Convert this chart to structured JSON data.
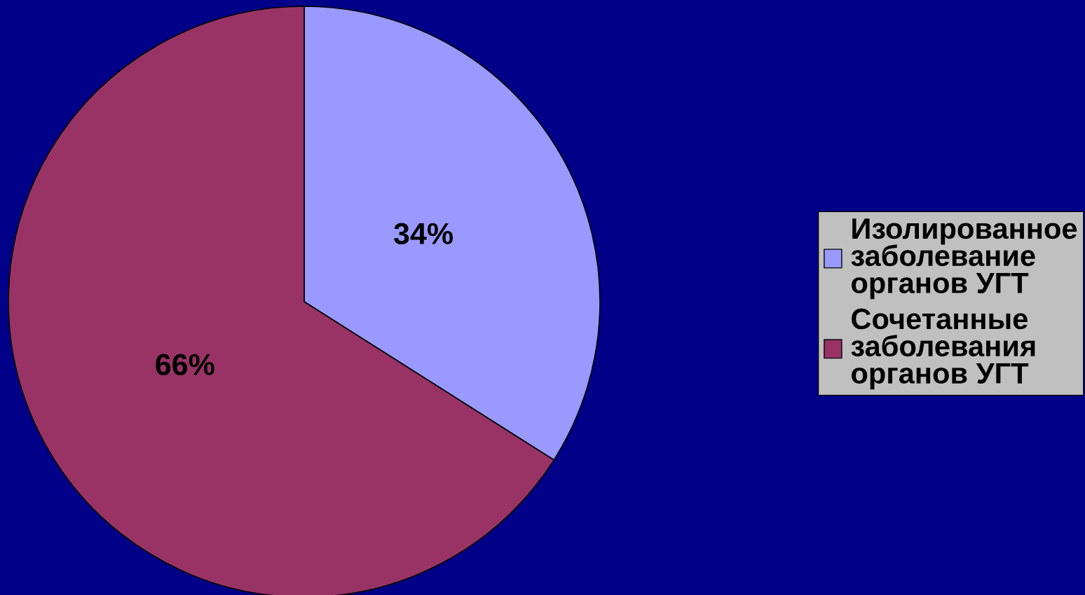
{
  "chart_data": {
    "type": "pie",
    "categories": [
      "Изолированное\nзаболевание\nорганов УГТ",
      "Сочетанные\nзаболевания\nорганов УГТ"
    ],
    "values": [
      34,
      66
    ],
    "colors": [
      "#9999ff",
      "#993366"
    ],
    "value_labels": [
      "34%",
      "66%"
    ],
    "legend": "right"
  }
}
